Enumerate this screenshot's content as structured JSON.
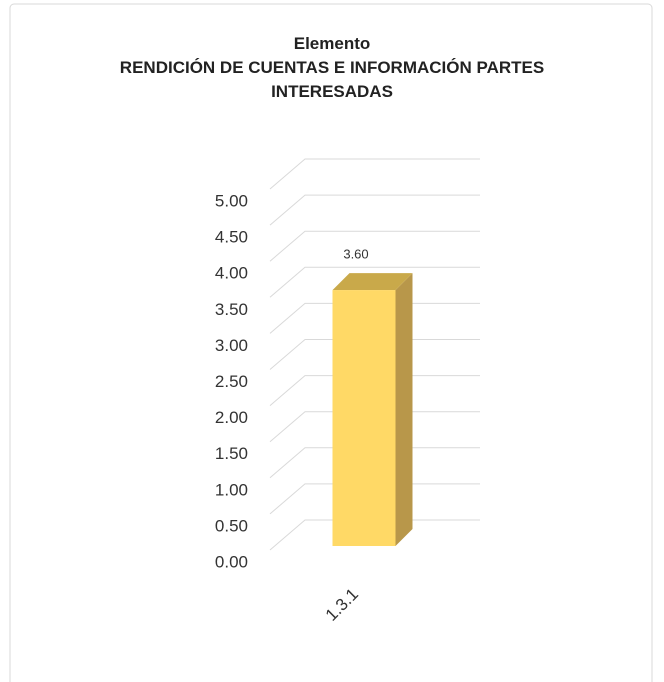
{
  "chart_data": {
    "type": "bar3d",
    "title": "Elemento",
    "subtitle": "RENDICIÓN DE CUENTAS E INFORMACIÓN PARTES INTERESADAS",
    "categories": [
      "1.3.1"
    ],
    "values": [
      3.6
    ],
    "value_labels": [
      "3.60"
    ],
    "color": "#ffd966",
    "ylim": [
      0,
      5
    ],
    "yticks": [
      {
        "value": 0,
        "label": "0.00"
      },
      {
        "value": 0.5,
        "label": "0.50"
      },
      {
        "value": 1,
        "label": "1.00"
      },
      {
        "value": 1.5,
        "label": "1.50"
      },
      {
        "value": 2,
        "label": "2.00"
      },
      {
        "value": 2.5,
        "label": "2.50"
      },
      {
        "value": 3,
        "label": "3.00"
      },
      {
        "value": 3.5,
        "label": "3.50"
      },
      {
        "value": 4,
        "label": "4.00"
      },
      {
        "value": 4.5,
        "label": "4.50"
      },
      {
        "value": 5,
        "label": "5.00"
      }
    ],
    "grid": true
  }
}
